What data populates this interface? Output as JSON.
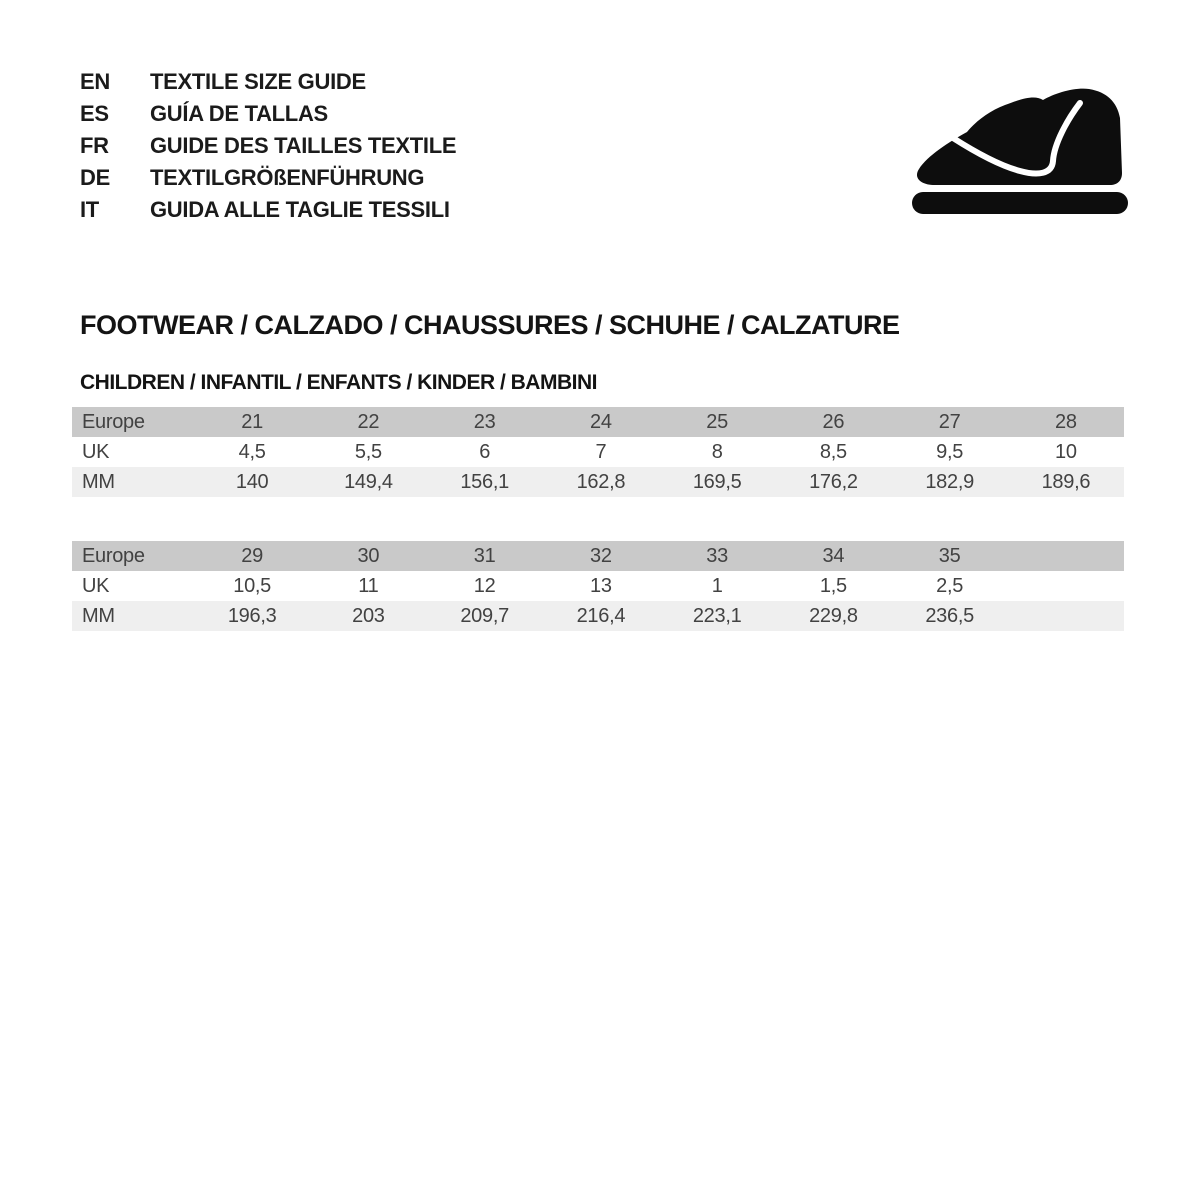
{
  "languages": [
    {
      "code": "EN",
      "label": "TEXTILE SIZE GUIDE"
    },
    {
      "code": "ES",
      "label": "GUÍA DE TALLAS"
    },
    {
      "code": "FR",
      "label": "GUIDE DES TAILLES TEXTILE"
    },
    {
      "code": "DE",
      "label": "TEXTILGRÖßENFÜHRUNG"
    },
    {
      "code": "IT",
      "label": "GUIDA ALLE TAGLIE TESSILI"
    }
  ],
  "logo": {
    "icon": "baby-shoe-icon",
    "color": "#0d0d0d"
  },
  "section": {
    "title": "FOOTWEAR / CALZADO / CHAUSSURES / SCHUHE / CALZATURE",
    "subtitle": "CHILDREN / INFANTIL / ENFANTS / KINDER / BAMBINI"
  },
  "tables": [
    {
      "rows": [
        {
          "label": "Europe",
          "values": [
            "21",
            "22",
            "23",
            "24",
            "25",
            "26",
            "27",
            "28"
          ]
        },
        {
          "label": "UK",
          "values": [
            "4,5",
            "5,5",
            "6",
            "7",
            "8",
            "8,5",
            "9,5",
            "10"
          ]
        },
        {
          "label": "MM",
          "values": [
            "140",
            "149,4",
            "156,1",
            "162,8",
            "169,5",
            "176,2",
            "182,9",
            "189,6"
          ]
        }
      ]
    },
    {
      "rows": [
        {
          "label": "Europe",
          "values": [
            "29",
            "30",
            "31",
            "32",
            "33",
            "34",
            "35",
            ""
          ]
        },
        {
          "label": "UK",
          "values": [
            "10,5",
            "11",
            "12",
            "13",
            "1",
            "1,5",
            "2,5",
            ""
          ]
        },
        {
          "label": "MM",
          "values": [
            "196,3",
            "203",
            "209,7",
            "216,4",
            "223,1",
            "229,8",
            "236,5",
            ""
          ]
        }
      ]
    }
  ],
  "colors": {
    "page_bg": "#ffffff",
    "header_row_bg": "#c9c9c9",
    "alt_row_bg": "#efefef",
    "table_text": "#424242",
    "heading_text": "#141414",
    "icon_color": "#0d0d0d"
  }
}
